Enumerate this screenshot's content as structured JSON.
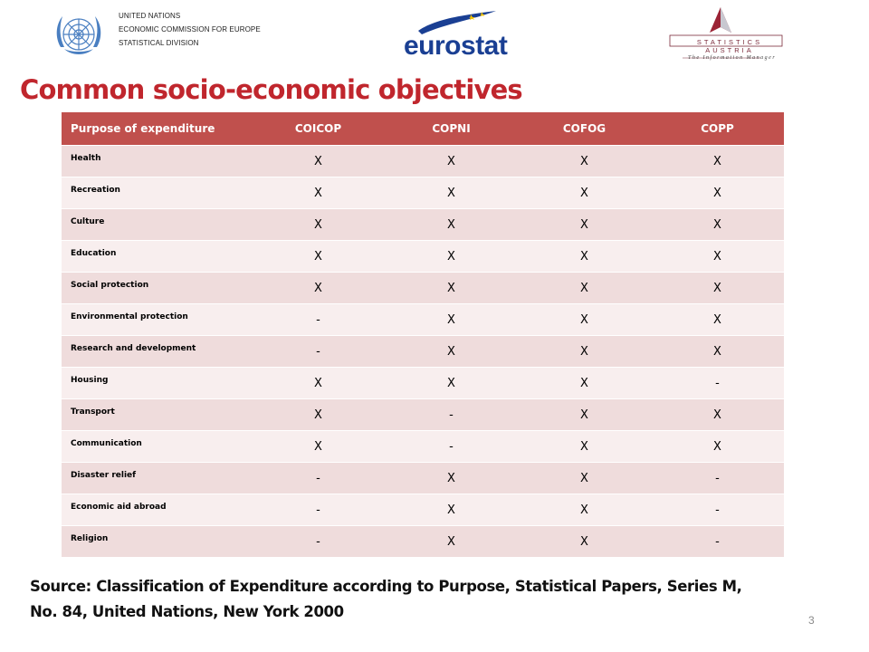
{
  "header": {
    "un_lines": [
      "UNITED NATIONS",
      "ECONOMIC COMMISSION FOR EUROPE",
      "STATISTICAL DIVISION"
    ],
    "eurostat_text": "eurostat",
    "statistics_austria_name": "STATISTICS AUSTRIA",
    "statistics_austria_tagline": "The Information Manager"
  },
  "title": "Common socio-economic objectives",
  "table": {
    "headers": [
      "Purpose of expenditure",
      "COICOP",
      "COPNI",
      "COFOG",
      "COPP"
    ],
    "rows": [
      [
        "Health",
        "X",
        "X",
        "X",
        "X"
      ],
      [
        "Recreation",
        "X",
        "X",
        "X",
        "X"
      ],
      [
        "Culture",
        "X",
        "X",
        "X",
        "X"
      ],
      [
        "Education",
        "X",
        "X",
        "X",
        "X"
      ],
      [
        "Social protection",
        "X",
        "X",
        "X",
        "X"
      ],
      [
        "Environmental protection",
        "-",
        "X",
        "X",
        "X"
      ],
      [
        "Research and development",
        "-",
        "X",
        "X",
        "X"
      ],
      [
        "Housing",
        "X",
        "X",
        "X",
        "-"
      ],
      [
        "Transport",
        "X",
        "-",
        "X",
        "X"
      ],
      [
        "Communication",
        "X",
        "-",
        "X",
        "X"
      ],
      [
        "Disaster relief",
        "-",
        "X",
        "X",
        "-"
      ],
      [
        "Economic aid abroad",
        "-",
        "X",
        "X",
        "-"
      ],
      [
        "Religion",
        "-",
        "X",
        "X",
        "-"
      ]
    ]
  },
  "source": {
    "line1": "Source: Classification of Expenditure according to Purpose, Statistical Papers, Series M,",
    "line2": "No. 84, United Nations, New York 2000"
  },
  "page_number": "3",
  "colors": {
    "title": "#c0262d",
    "header_fill": "#c0504d",
    "row_odd": "#efdcdc",
    "row_even": "#f8eeee",
    "eurostat_blue": "#1a3f93",
    "un_blue": "#4a7fc1"
  }
}
